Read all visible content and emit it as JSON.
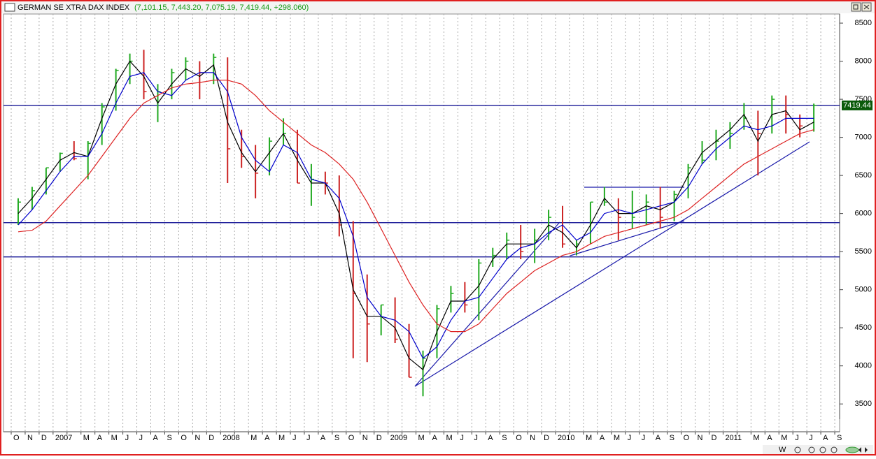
{
  "chart_data": {
    "type": "ohlc",
    "title": "GERMAN SE XTRA DAX INDEX",
    "subtitle": "(7,101.15, 7,443.20, 7,075.19, 7,419.44, +298.060)",
    "categories": [
      "O",
      "N",
      "D",
      "2007",
      null,
      "M",
      "A",
      "M",
      "J",
      "J",
      "A",
      "S",
      "O",
      "N",
      "D",
      "2008",
      null,
      "M",
      "A",
      "M",
      "J",
      "J",
      "A",
      "S",
      "O",
      "N",
      "D",
      "2009",
      null,
      "M",
      "A",
      "M",
      "J",
      "J",
      "A",
      "S",
      "O",
      "N",
      "D",
      "2010",
      null,
      "M",
      "A",
      "M",
      "J",
      "J",
      "A",
      "S",
      "O",
      "N",
      "D",
      "2011",
      null,
      "M",
      "A",
      "M",
      "J",
      "J",
      "A",
      "S"
    ],
    "bars": {
      "up_color": "#22aa22",
      "down_color": "#cc2222",
      "high": [
        6200,
        6350,
        6600,
        6800,
        6950,
        6950,
        7450,
        7900,
        8100,
        8150,
        7700,
        7900,
        8050,
        8000,
        8100,
        8050,
        7100,
        6900,
        7000,
        7250,
        7100,
        6650,
        6550,
        6500,
        5900,
        5200,
        4800,
        4900,
        4550,
        4200,
        4800,
        5050,
        5100,
        5400,
        5550,
        5750,
        5850,
        5800,
        6050,
        6100,
        5650,
        6150,
        6350,
        6200,
        6300,
        6250,
        6350,
        6300,
        6650,
        6950,
        7100,
        7200,
        7450,
        7350,
        7550,
        7550,
        7300,
        7443.2,
        null,
        null
      ],
      "low": [
        5850,
        6050,
        6250,
        6550,
        6700,
        6450,
        6900,
        7350,
        7700,
        7500,
        7200,
        7500,
        7750,
        7500,
        7700,
        6400,
        6600,
        6200,
        6500,
        6900,
        6400,
        6100,
        6250,
        5700,
        4100,
        4050,
        4400,
        4300,
        3850,
        3600,
        4100,
        4700,
        4700,
        4600,
        5300,
        5400,
        5400,
        5350,
        5650,
        5550,
        5450,
        5600,
        6100,
        5650,
        5800,
        5850,
        5800,
        5900,
        6200,
        6650,
        6700,
        6850,
        7100,
        6500,
        7050,
        7050,
        7000,
        7075.19,
        null,
        null
      ],
      "close": [
        6150,
        6300,
        6600,
        6790,
        6720,
        6920,
        7400,
        7880,
        8000,
        7600,
        7600,
        7850,
        8000,
        7850,
        8050,
        6850,
        6750,
        6530,
        6950,
        7050,
        6400,
        6450,
        6400,
        5850,
        4950,
        4550,
        4800,
        4350,
        3850,
        4100,
        4750,
        4950,
        4800,
        5350,
        5450,
        5650,
        5500,
        5650,
        5950,
        5600,
        5600,
        6150,
        6150,
        5950,
        5950,
        6150,
        5950,
        6250,
        6600,
        6700,
        6950,
        7050,
        7250,
        7050,
        7500,
        7300,
        7150,
        7419.44,
        null,
        null
      ]
    },
    "series": [
      {
        "color": "#000000",
        "values": [
          6000,
          6200,
          6450,
          6700,
          6800,
          6750,
          7250,
          7700,
          8000,
          7800,
          7450,
          7700,
          7900,
          7800,
          7950,
          7200,
          6800,
          6550,
          6800,
          7050,
          6700,
          6400,
          6400,
          6000,
          5000,
          4650,
          4650,
          4500,
          4100,
          3950,
          4450,
          4850,
          4850,
          5050,
          5400,
          5600,
          5600,
          5600,
          5850,
          5750,
          5550,
          5850,
          6200,
          6000,
          6000,
          6100,
          6050,
          6150,
          6500,
          6800,
          6950,
          7100,
          7300,
          6950,
          7300,
          7350,
          7100,
          7200,
          null,
          null
        ]
      },
      {
        "color": "#0000cc",
        "values": [
          5850,
          6050,
          6300,
          6550,
          6750,
          6750,
          7050,
          7450,
          7800,
          7850,
          7600,
          7550,
          7750,
          7850,
          7850,
          7600,
          7000,
          6700,
          6550,
          6900,
          6800,
          6450,
          6400,
          6200,
          5700,
          4900,
          4650,
          4600,
          4450,
          4100,
          4250,
          4600,
          4850,
          4900,
          5150,
          5400,
          5550,
          5600,
          5750,
          5850,
          5650,
          5750,
          6000,
          6050,
          6000,
          6050,
          6100,
          6150,
          6350,
          6650,
          6850,
          7000,
          7150,
          7100,
          7150,
          7250,
          7250,
          7250,
          null,
          null
        ]
      },
      {
        "color": "#dd2222",
        "values": [
          5760,
          5780,
          5900,
          6100,
          6300,
          6500,
          6750,
          7000,
          7250,
          7450,
          7550,
          7650,
          7700,
          7720,
          7750,
          7750,
          7700,
          7550,
          7350,
          7200,
          7050,
          6900,
          6800,
          6650,
          6450,
          6150,
          5800,
          5450,
          5100,
          4800,
          4550,
          4450,
          4450,
          4550,
          4750,
          4950,
          5100,
          5250,
          5350,
          5450,
          5500,
          5600,
          5700,
          5750,
          5800,
          5850,
          5900,
          5950,
          6050,
          6200,
          6350,
          6500,
          6650,
          6750,
          6850,
          6950,
          7050,
          7100,
          null,
          null
        ]
      }
    ],
    "levels": [
      {
        "value": 7419.44,
        "color": "#00008b"
      },
      {
        "value": 5880,
        "color": "#00008b"
      },
      {
        "value": 5430,
        "color": "#00008b"
      }
    ],
    "ylim": [
      3300,
      8620
    ],
    "yticks": [
      3500,
      4000,
      4500,
      5000,
      5500,
      6000,
      6500,
      7000,
      7500,
      8000,
      8500
    ],
    "grid": true
  },
  "toolbar": {
    "label": "W"
  }
}
